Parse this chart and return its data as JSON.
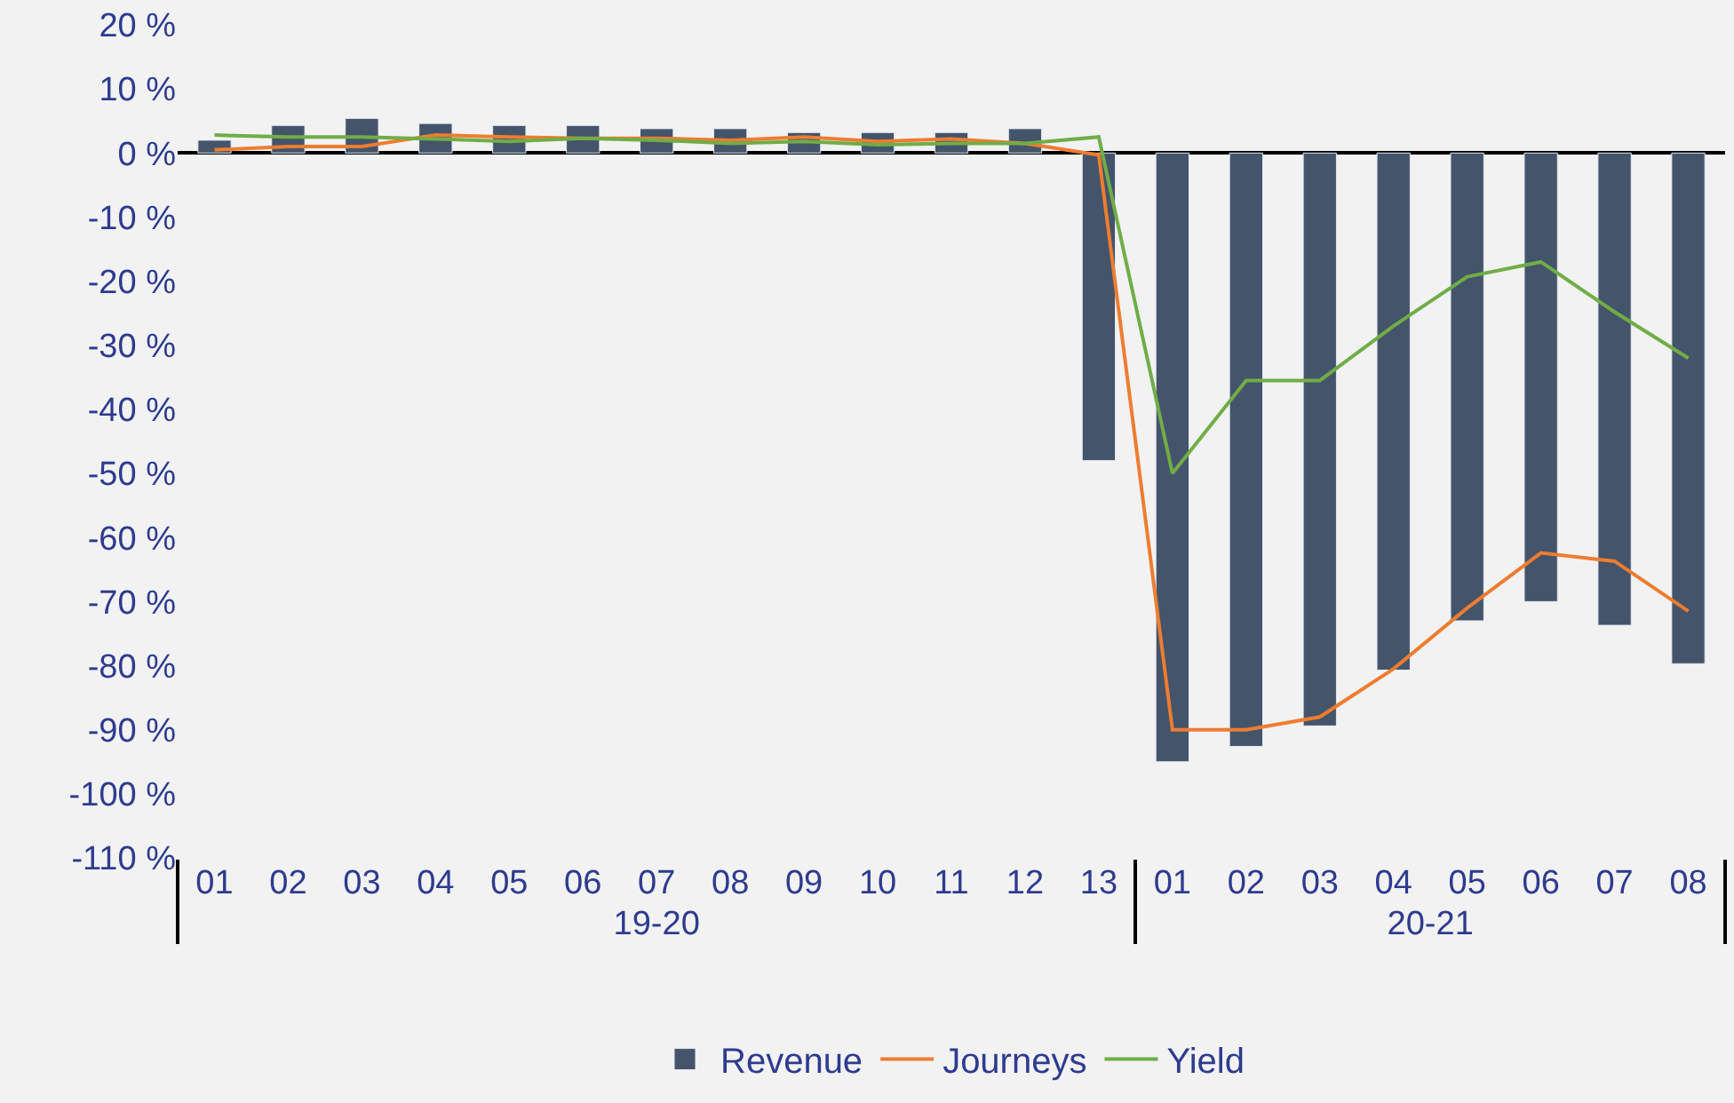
{
  "chart_data": {
    "type": "bar",
    "categories": [
      "01",
      "02",
      "03",
      "04",
      "05",
      "06",
      "07",
      "08",
      "09",
      "10",
      "11",
      "12",
      "13",
      "01",
      "02",
      "03",
      "04",
      "05",
      "06",
      "07",
      "08"
    ],
    "annotations": [
      "19-20",
      "20-21"
    ],
    "series": [
      {
        "name": "Revenue",
        "color": "#44546a",
        "values": [
          2,
          4.3,
          5.4,
          4.6,
          4.3,
          4.3,
          3.8,
          3.8,
          3.2,
          3.2,
          3.2,
          3.8,
          -48,
          -95,
          -92.6,
          -89.4,
          -80.7,
          -73,
          -70,
          -73.7,
          -79.7
        ]
      },
      {
        "name": "Journeys",
        "type": "line",
        "color": "#ed7d31",
        "values": [
          0.5,
          1,
          1,
          2.8,
          2.5,
          2.3,
          2.3,
          2,
          2.5,
          1.8,
          2.2,
          1.5,
          -0.3,
          -90,
          -90,
          -88,
          -80.5,
          -71,
          -62.4,
          -63.7,
          -71.5
        ]
      },
      {
        "name": "Yield",
        "type": "line",
        "color": "#70ad47",
        "values": [
          2.8,
          2.5,
          2.5,
          2.2,
          1.8,
          2.3,
          2,
          1.5,
          1.8,
          1.3,
          1.5,
          1.5,
          2.5,
          -50,
          -35.5,
          -35.5,
          -27,
          -19.3,
          -17,
          -24.8,
          -32
        ]
      }
    ],
    "ylim": [
      -110,
      20
    ],
    "yticks": [
      {
        "value": 20,
        "label": "20 %"
      },
      {
        "value": 10,
        "label": "10 %"
      },
      {
        "value": 0,
        "label": "0 %"
      },
      {
        "value": -10,
        "label": "-10 %"
      },
      {
        "value": -20,
        "label": "-20 %"
      },
      {
        "value": -30,
        "label": "-30 %"
      },
      {
        "value": -40,
        "label": "-40 %"
      },
      {
        "value": -50,
        "label": "-50 %"
      },
      {
        "value": -60,
        "label": "-60 %"
      },
      {
        "value": -70,
        "label": "-70 %"
      },
      {
        "value": -80,
        "label": "-80 %"
      },
      {
        "value": -90,
        "label": "-90 %"
      },
      {
        "value": -100,
        "label": "-100 %"
      },
      {
        "value": -110,
        "label": "-110 %"
      }
    ],
    "legend": "bottom",
    "marker": "none",
    "line_style": "solid"
  }
}
